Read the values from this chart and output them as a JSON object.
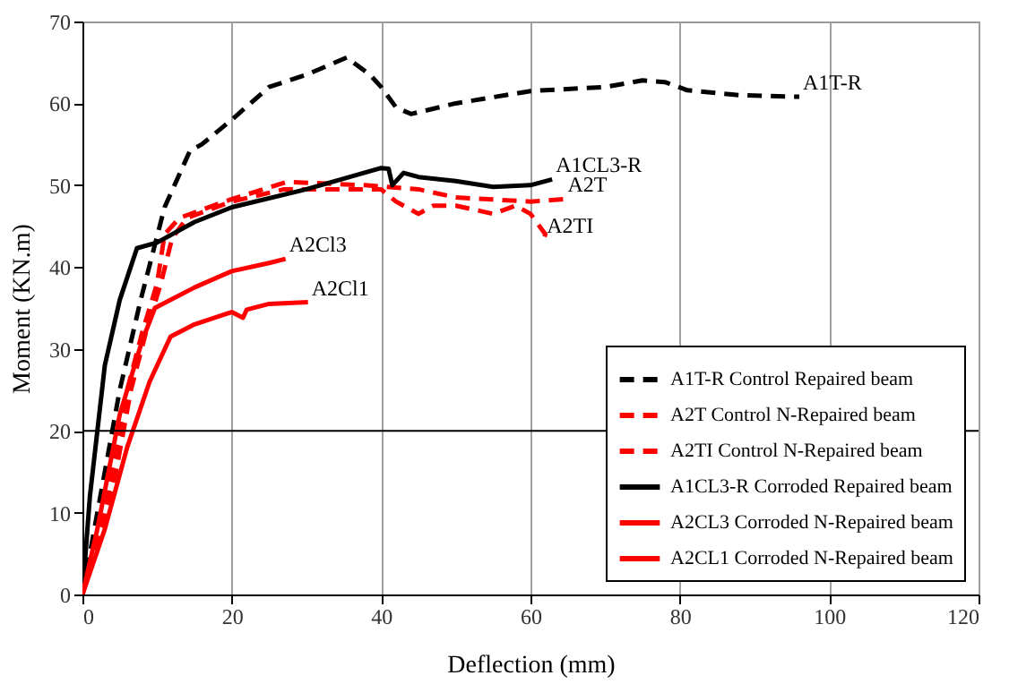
{
  "chart_data": {
    "type": "line",
    "xlabel": "Deflection (mm)",
    "ylabel": "Moment (KN.m)",
    "xlim": [
      0,
      120
    ],
    "xticks": [
      0,
      20,
      40,
      60,
      80,
      100,
      120
    ],
    "ylim": [
      0,
      70
    ],
    "yticks": [
      0,
      10,
      20,
      30,
      40,
      50,
      60,
      70
    ],
    "grid": "x",
    "legend": "bottom right",
    "marker": "none",
    "ref_lines": [
      {
        "axis": "y",
        "value": 20,
        "color": "#000000"
      }
    ],
    "annotations": [
      {
        "text": "A1T-R",
        "x": 96,
        "y": 60.8
      },
      {
        "text": "A1CL3-R",
        "x": 62.9,
        "y": 50.7
      },
      {
        "text": "A2T",
        "x": 64.5,
        "y": 48.3
      },
      {
        "text": "A2TI",
        "x": 61.7,
        "y": 43.3
      },
      {
        "text": "A2Cl3",
        "x": 27.2,
        "y": 41
      },
      {
        "text": "A2Cl1",
        "x": 30.2,
        "y": 35.7
      }
    ],
    "series": [
      {
        "name": "A1T-R Control Repaired beam",
        "color": "#000000",
        "line_style": "dashed",
        "x": [
          0,
          2,
          5,
          7.8,
          11,
          14.4,
          16,
          20,
          25,
          30,
          35.4,
          37,
          38.5,
          40,
          42,
          44,
          50,
          60,
          70,
          75,
          78,
          81,
          88,
          96
        ],
        "values": [
          0,
          10,
          25,
          36,
          47.3,
          54.2,
          55,
          58,
          62,
          63.5,
          65.6,
          64.5,
          63.5,
          62,
          59.5,
          58.7,
          60,
          61.5,
          62,
          62.8,
          62.6,
          61.6,
          61,
          60.8
        ]
      },
      {
        "name": "A2T Control N-Repaired beam",
        "color": "#ff0000",
        "line_style": "dashed",
        "x": [
          0,
          3,
          6,
          8,
          10,
          11,
          13,
          19,
          27.4,
          37.8,
          45,
          50,
          60,
          64.5
        ],
        "values": [
          0,
          10,
          25,
          32,
          38,
          44,
          46,
          48,
          50.4,
          50,
          49.5,
          48.5,
          48,
          48.3
        ]
      },
      {
        "name": "A2TI Control N-Repaired beam",
        "color": "#ff0000",
        "line_style": "dashed",
        "x": [
          0,
          3.5,
          6.5,
          8.5,
          10.5,
          12,
          14,
          20,
          27,
          35,
          40,
          42,
          45,
          47,
          50,
          55,
          58,
          60,
          62,
          61.7
        ],
        "values": [
          0,
          10,
          25,
          32,
          38,
          43.5,
          46,
          48,
          49.5,
          49.5,
          49.5,
          48,
          46.5,
          47.5,
          47.5,
          46.5,
          47.5,
          46.5,
          44,
          43.3
        ]
      },
      {
        "name": "A1CL3-R Corroded Repaired beam",
        "color": "#000000",
        "line_style": "solid",
        "x": [
          0,
          1,
          3,
          5,
          7.3,
          10,
          15,
          20,
          30,
          40,
          41,
          41.5,
          43,
          45,
          50,
          55,
          60,
          62.9
        ],
        "values": [
          0,
          12,
          28,
          36,
          42.3,
          43,
          45.5,
          47.3,
          49.5,
          52.1,
          52,
          50,
          51.5,
          51,
          50.5,
          49.8,
          50,
          50.7
        ]
      },
      {
        "name": "A2CL3 Corroded N-Repaired beam",
        "color": "#ff0000",
        "line_style": "solid",
        "x": [
          0,
          2,
          5,
          8,
          9.7,
          15,
          20,
          25,
          27.2
        ],
        "values": [
          0,
          8,
          22,
          31,
          35,
          37.5,
          39.5,
          40.5,
          41
        ]
      },
      {
        "name": "A2CL1 Corroded N-Repaired beam",
        "color": "#ff0000",
        "line_style": "solid",
        "x": [
          0,
          3,
          6,
          9,
          11.8,
          15,
          20,
          21.5,
          22,
          25,
          30.2
        ],
        "values": [
          0,
          8,
          18,
          26,
          31.5,
          33,
          34.5,
          33.8,
          34.8,
          35.5,
          35.7
        ]
      }
    ]
  }
}
